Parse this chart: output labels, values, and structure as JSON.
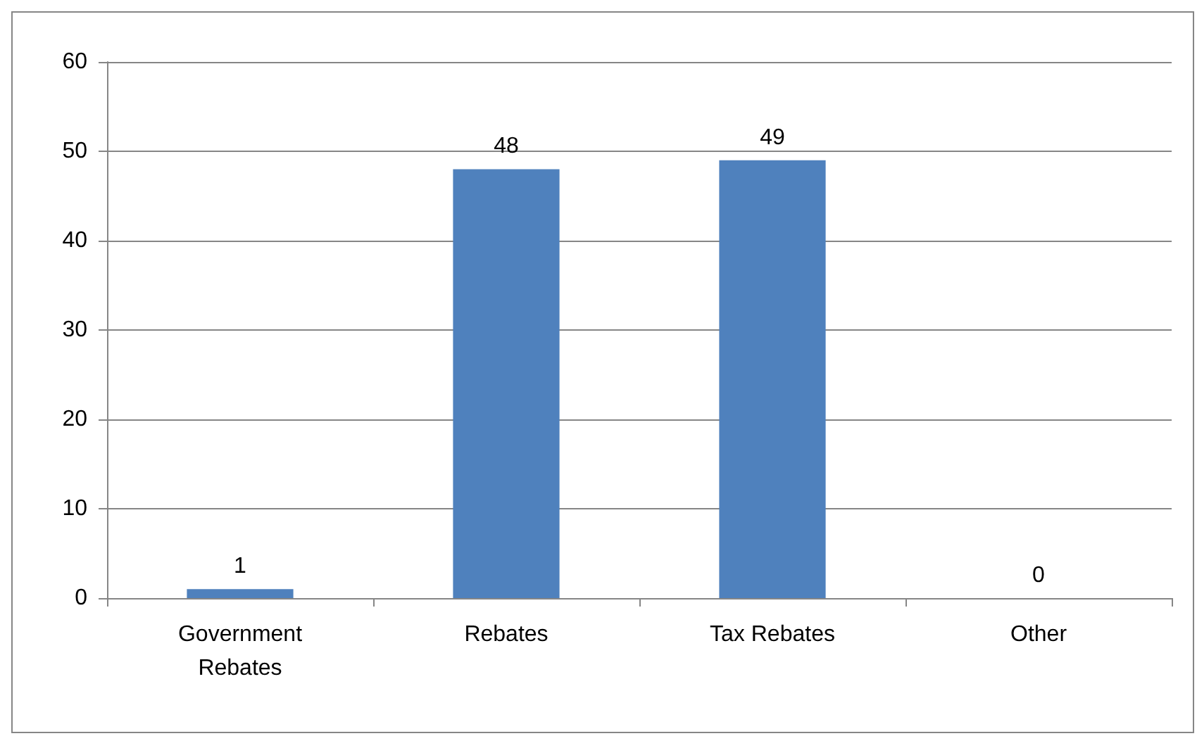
{
  "chart_data": {
    "type": "bar",
    "categories": [
      "Government Rebates",
      "Rebates",
      "Tax Rebates",
      "Other"
    ],
    "values": [
      1,
      48,
      49,
      0
    ],
    "color": "#4f81bd",
    "ylim": [
      0,
      60
    ],
    "yticks": [
      0,
      10,
      20,
      30,
      40,
      50,
      60
    ],
    "grid": "y",
    "data_labels": true
  }
}
